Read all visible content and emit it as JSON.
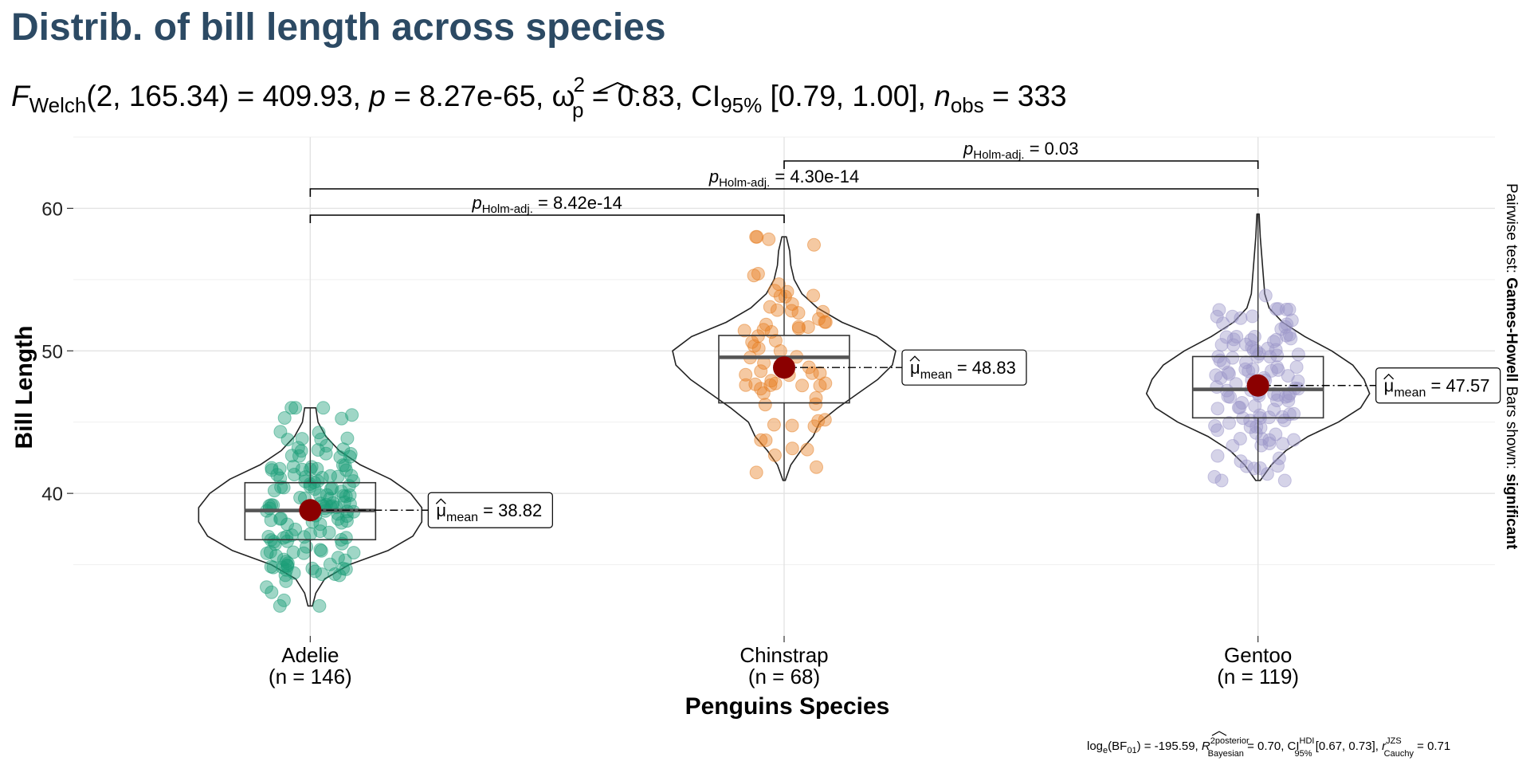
{
  "title": "Distrib. of bill length across species",
  "subtitle": {
    "F_label": "F",
    "F_sub": "Welch",
    "df": "(2, 165.34) = 409.93,",
    "p_label": "p",
    "p_value": " = 8.27e-65,",
    "omega": "ω",
    "omega_sup": "2",
    "omega_sub": "p",
    "omega_value": " = 0.83, CI",
    "ci_sub": "95%",
    "ci_value": " [0.79, 1.00],",
    "n_label": "n",
    "n_sub": "obs",
    "n_value": " = 333"
  },
  "caption": {
    "bf": "log",
    "bf_sub": "e",
    "bf_rest": "(BF",
    "bf_sub2": "01",
    "bf_val": ") = -195.59,",
    "r2": "R",
    "r2_sup": "2",
    "r2_sup_label": "posterior",
    "r2_sub_label": "Bayesian",
    "r2_val": " = 0.70, CI",
    "ci_sup": "HDI",
    "ci_sub": "95%",
    "ci_val": " [0.67, 0.73],",
    "r": "r",
    "r_sup": "JZS",
    "r_sub": "Cauchy",
    "r_val": " = 0.71"
  },
  "side_note": {
    "prefix": "Pairwise test: ",
    "test": "Games-Howell",
    "middle": " Bars shown: ",
    "shown": "significant"
  },
  "mean_label_prefix": "mean",
  "chart_data": {
    "type": "violin",
    "xlabel": "Penguins Species",
    "ylabel": "Bill Length",
    "ylim": [
      30,
      65
    ],
    "yticks": [
      40,
      50,
      60
    ],
    "grid": true,
    "categories": [
      "Adelie",
      "Chinstrap",
      "Gentoo"
    ],
    "n_labels": [
      "(n = 146)",
      "(n = 68)",
      "(n = 119)"
    ],
    "colors": [
      "#1b9e77",
      "#e67e22",
      "#9b95c9"
    ],
    "mean_color": "#8b0000",
    "groups": [
      {
        "name": "Adelie",
        "n": 146,
        "mean": 38.82,
        "mean_label": "38.82",
        "min": 32.1,
        "q1": 36.75,
        "median": 38.8,
        "q3": 40.75,
        "max": 46.0,
        "density": [
          [
            32.1,
            0.02
          ],
          [
            33,
            0.05
          ],
          [
            34,
            0.13
          ],
          [
            35,
            0.35
          ],
          [
            36,
            0.7
          ],
          [
            37,
            0.92
          ],
          [
            38,
            1.0
          ],
          [
            39,
            1.0
          ],
          [
            40,
            0.9
          ],
          [
            41,
            0.72
          ],
          [
            42,
            0.45
          ],
          [
            43,
            0.26
          ],
          [
            44,
            0.14
          ],
          [
            45,
            0.07
          ],
          [
            46,
            0.05
          ]
        ]
      },
      {
        "name": "Chinstrap",
        "n": 68,
        "mean": 48.83,
        "mean_label": "48.83",
        "min": 40.9,
        "q1": 46.35,
        "median": 49.55,
        "q3": 51.08,
        "max": 58.0,
        "density": [
          [
            40.9,
            0.01
          ],
          [
            42,
            0.06
          ],
          [
            43,
            0.15
          ],
          [
            44,
            0.26
          ],
          [
            45,
            0.32
          ],
          [
            46,
            0.48
          ],
          [
            47,
            0.66
          ],
          [
            48,
            0.84
          ],
          [
            49,
            0.97
          ],
          [
            50,
            1.0
          ],
          [
            51,
            0.83
          ],
          [
            52,
            0.52
          ],
          [
            53,
            0.3
          ],
          [
            54,
            0.16
          ],
          [
            55,
            0.09
          ],
          [
            56,
            0.06
          ],
          [
            57,
            0.05
          ],
          [
            58,
            0.02
          ]
        ]
      },
      {
        "name": "Gentoo",
        "n": 119,
        "mean": 47.57,
        "mean_label": "47.57",
        "min": 40.9,
        "q1": 45.3,
        "median": 47.3,
        "q3": 49.6,
        "max": 59.6,
        "density": [
          [
            40.9,
            0.02
          ],
          [
            42,
            0.12
          ],
          [
            43,
            0.25
          ],
          [
            44,
            0.45
          ],
          [
            45,
            0.72
          ],
          [
            46,
            0.92
          ],
          [
            47,
            1.0
          ],
          [
            48,
            0.95
          ],
          [
            49,
            0.85
          ],
          [
            50,
            0.66
          ],
          [
            51,
            0.42
          ],
          [
            52,
            0.22
          ],
          [
            53,
            0.1
          ],
          [
            54,
            0.06
          ],
          [
            55,
            0.05
          ],
          [
            56,
            0.04
          ],
          [
            57,
            0.03
          ],
          [
            58,
            0.02
          ],
          [
            59.6,
            0.01
          ]
        ]
      }
    ],
    "comparisons": [
      {
        "from": 0,
        "to": 1,
        "p_label": "p",
        "p_sub": "Holm-adj.",
        "p_value": " = 8.42e-14",
        "level": 0
      },
      {
        "from": 0,
        "to": 2,
        "p_label": "p",
        "p_sub": "Holm-adj.",
        "p_value": " = 4.30e-14",
        "level": 1
      },
      {
        "from": 1,
        "to": 2,
        "p_label": "p",
        "p_sub": "Holm-adj.",
        "p_value": " = 0.03",
        "level": 2
      }
    ]
  }
}
